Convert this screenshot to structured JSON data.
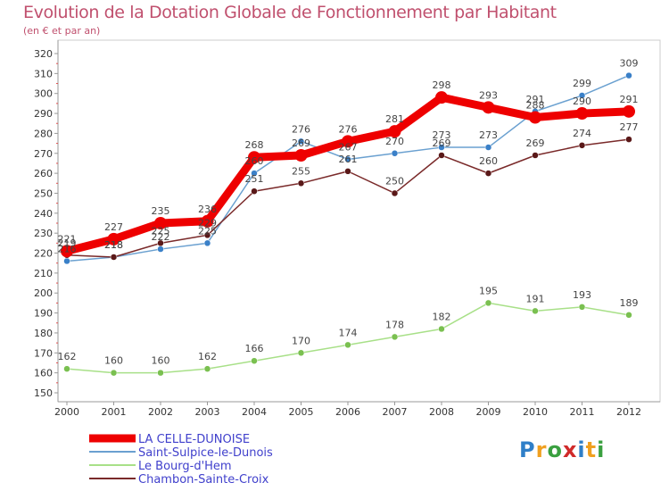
{
  "title": "Evolution de la Dotation Globale de Fonctionnement par Habitant",
  "subtitle": "(en € et par an)",
  "logo": {
    "letters": [
      {
        "ch": "P",
        "color": "#2f7fc8"
      },
      {
        "ch": "r",
        "color": "#f0a020"
      },
      {
        "ch": "o",
        "color": "#3aa040"
      },
      {
        "ch": "x",
        "color": "#d02a2a"
      },
      {
        "ch": "i",
        "color": "#2f7fc8"
      },
      {
        "ch": "t",
        "color": "#f0a020"
      },
      {
        "ch": "i",
        "color": "#3aa040"
      }
    ]
  },
  "chart_data": {
    "type": "line",
    "x": [
      "2000",
      "2001",
      "2002",
      "2003",
      "2004",
      "2005",
      "2006",
      "2007",
      "2008",
      "2009",
      "2010",
      "2011",
      "2012"
    ],
    "ylim": [
      150,
      320
    ],
    "yticks": [
      150,
      160,
      170,
      180,
      190,
      200,
      210,
      220,
      230,
      240,
      250,
      260,
      270,
      280,
      290,
      300,
      310,
      320
    ],
    "grid": false,
    "legend_position": "bottom-left",
    "series": [
      {
        "name": "LA CELLE-DUNOISE",
        "color": "#ee0000",
        "marker": "#ee0000",
        "width": 9,
        "radius": 7,
        "values": [
          221,
          227,
          235,
          236,
          268,
          269,
          276,
          281,
          298,
          293,
          288,
          290,
          291
        ],
        "labels": [
          "221",
          "227",
          "235",
          "236",
          "268",
          "269",
          "276",
          "281",
          "298",
          "293",
          "288",
          "290",
          "291"
        ]
      },
      {
        "name": "Saint-Sulpice-le-Dunois",
        "color": "#6aa0d0",
        "marker": "#3a80c8",
        "width": 1.5,
        "radius": 3.5,
        "values": [
          216,
          218,
          222,
          225,
          260,
          276,
          267,
          270,
          273,
          273,
          291,
          299,
          309
        ],
        "labels": [
          "216",
          "218",
          "222",
          "225",
          "260",
          "276",
          "267",
          "270",
          "273",
          "273",
          "291",
          "299",
          "309"
        ]
      },
      {
        "name": "Le Bourg-d'Hem",
        "color": "#a8e088",
        "marker": "#7ac050",
        "width": 1.5,
        "radius": 3.5,
        "values": [
          162,
          160,
          160,
          162,
          166,
          170,
          174,
          178,
          182,
          195,
          191,
          193,
          189
        ],
        "labels": [
          "162",
          "160",
          "160",
          "162",
          "166",
          "170",
          "174",
          "178",
          "182",
          "195",
          "191",
          "193",
          "189"
        ]
      },
      {
        "name": "Chambon-Sainte-Croix",
        "color": "#7a2a2a",
        "marker": "#5a1818",
        "width": 1.5,
        "radius": 3.5,
        "values": [
          219,
          218,
          225,
          229,
          251,
          255,
          261,
          250,
          269,
          260,
          269,
          274,
          277
        ],
        "labels": [
          "219",
          "218",
          "225",
          "229",
          "251",
          "255",
          "261",
          "250",
          "269",
          "260",
          "269",
          "274",
          "277"
        ]
      }
    ]
  }
}
